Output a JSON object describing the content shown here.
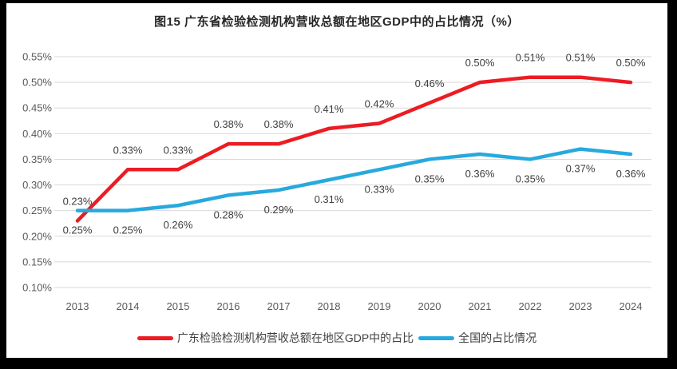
{
  "title": "图15  广东省检验检测机构营收总额在地区GDP中的占比情况（%）",
  "colors": {
    "guangdong_line": "#ec1c23",
    "national_line": "#27a9de",
    "gridline": "#d9d9d9",
    "axis_text": "#595959",
    "data_label_text": "#3d3d3d",
    "frame": "#000000",
    "background": "#ffffff"
  },
  "chart_data": {
    "type": "line",
    "title": "图15  广东省检验检测机构营收总额在地区GDP中的占比情况（%）",
    "categories": [
      "2013",
      "2014",
      "2015",
      "2016",
      "2017",
      "2018",
      "2019",
      "2020",
      "2021",
      "2022",
      "2023",
      "2024"
    ],
    "series": [
      {
        "name": "广东检验检测机构营收总额在地区GDP中的占比",
        "color": "#ec1c23",
        "values": [
          0.23,
          0.33,
          0.33,
          0.38,
          0.38,
          0.41,
          0.42,
          0.46,
          0.5,
          0.51,
          0.51,
          0.5
        ],
        "labels": [
          "0.23%",
          "0.33%",
          "0.33%",
          "0.38%",
          "0.38%",
          "0.41%",
          "0.42%",
          "0.46%",
          "0.50%",
          "0.51%",
          "0.51%",
          "0.50%"
        ],
        "label_position": "above"
      },
      {
        "name": "全国的占比情况",
        "color": "#27a9de",
        "values": [
          0.25,
          0.25,
          0.26,
          0.28,
          0.29,
          0.31,
          0.33,
          0.35,
          0.36,
          0.35,
          0.37,
          0.36
        ],
        "labels": [
          "0.25%",
          "0.25%",
          "0.26%",
          "0.28%",
          "0.29%",
          "0.31%",
          "0.33%",
          "0.35%",
          "0.36%",
          "0.35%",
          "0.37%",
          "0.36%"
        ],
        "label_position": "below"
      }
    ],
    "xlabel": "",
    "ylabel": "",
    "y_axis": {
      "min": 0.1,
      "max": 0.55,
      "step": 0.05,
      "tick_labels": [
        "0.55%",
        "0.50%",
        "0.45%",
        "0.40%",
        "0.35%",
        "0.30%",
        "0.25%",
        "0.20%",
        "0.15%",
        "0.10%"
      ],
      "unit": "%"
    },
    "grid": true,
    "legend_position": "bottom"
  }
}
